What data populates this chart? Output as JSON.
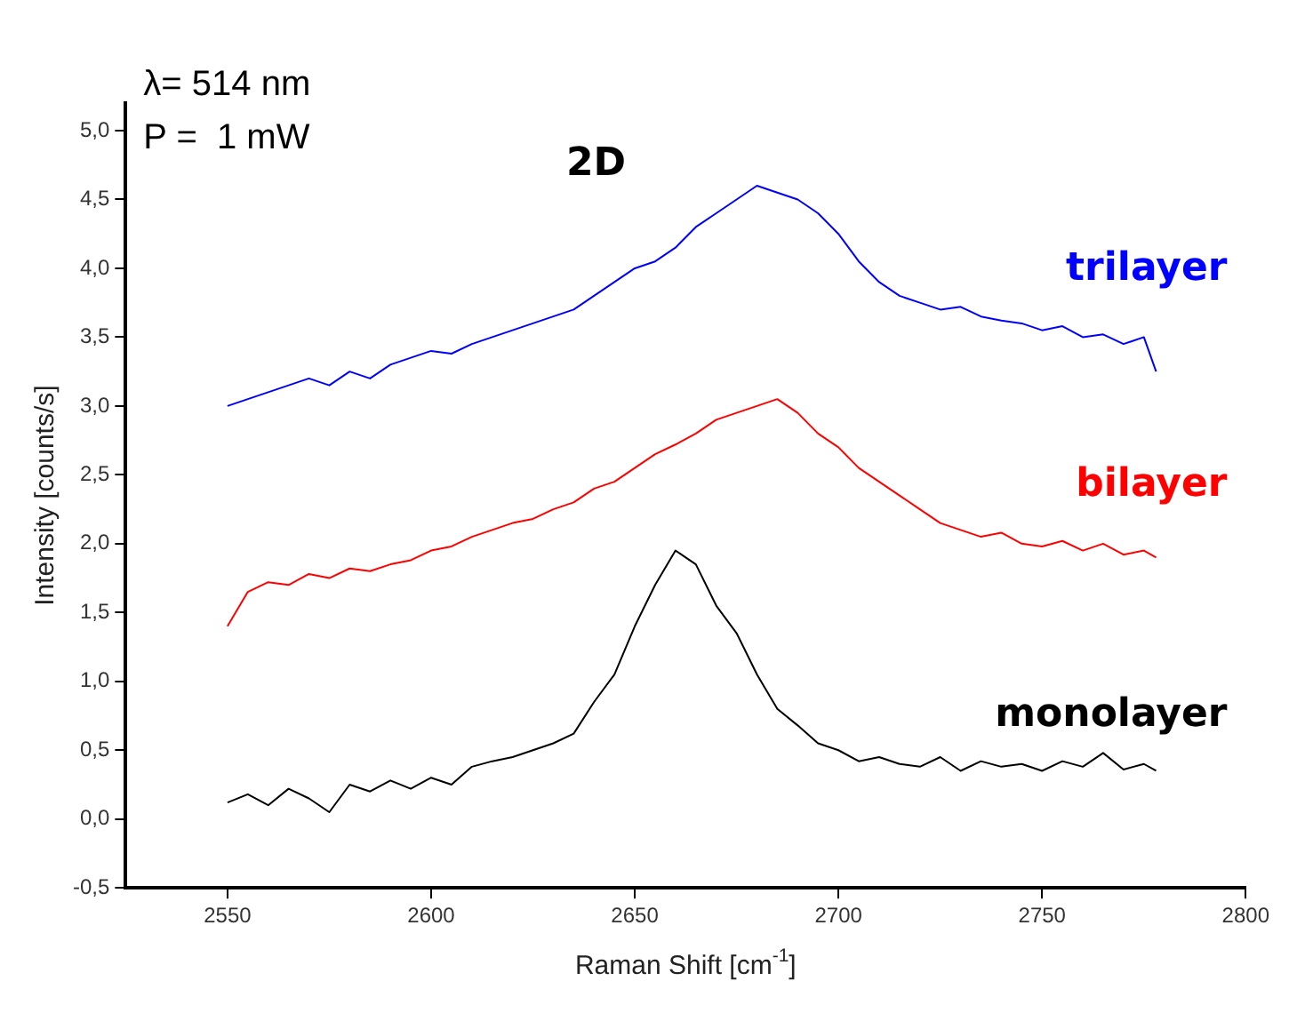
{
  "chart_data": {
    "type": "line",
    "xlabel": "Raman Shift [cm$^{-1}$]",
    "ylabel": "Intensity [counts/s]",
    "annotations": [
      "λ= 514 nm",
      "P =  1 mW",
      "2D"
    ],
    "x": [
      2550,
      2555,
      2560,
      2565,
      2570,
      2575,
      2580,
      2585,
      2590,
      2595,
      2600,
      2605,
      2610,
      2615,
      2620,
      2625,
      2630,
      2635,
      2640,
      2645,
      2650,
      2655,
      2660,
      2665,
      2670,
      2675,
      2680,
      2685,
      2690,
      2695,
      2700,
      2705,
      2710,
      2715,
      2720,
      2725,
      2730,
      2735,
      2740,
      2745,
      2750,
      2755,
      2760,
      2765,
      2770,
      2775,
      2778
    ],
    "series": [
      {
        "name": "trilayer",
        "color": "#0000ff",
        "values": [
          3.0,
          3.05,
          3.1,
          3.15,
          3.2,
          3.15,
          3.25,
          3.2,
          3.3,
          3.35,
          3.4,
          3.38,
          3.45,
          3.5,
          3.55,
          3.6,
          3.65,
          3.7,
          3.8,
          3.9,
          4.0,
          4.05,
          4.15,
          4.3,
          4.4,
          4.5,
          4.6,
          4.55,
          4.5,
          4.4,
          4.25,
          4.05,
          3.9,
          3.8,
          3.75,
          3.7,
          3.72,
          3.65,
          3.62,
          3.6,
          3.55,
          3.58,
          3.5,
          3.52,
          3.45,
          3.5,
          3.25
        ]
      },
      {
        "name": "bilayer",
        "color": "#ff0000",
        "values": [
          1.4,
          1.65,
          1.72,
          1.7,
          1.78,
          1.75,
          1.82,
          1.8,
          1.85,
          1.88,
          1.95,
          1.98,
          2.05,
          2.1,
          2.15,
          2.18,
          2.25,
          2.3,
          2.4,
          2.45,
          2.55,
          2.65,
          2.72,
          2.8,
          2.9,
          2.95,
          3.0,
          3.05,
          2.95,
          2.8,
          2.7,
          2.55,
          2.45,
          2.35,
          2.25,
          2.15,
          2.1,
          2.05,
          2.08,
          2.0,
          1.98,
          2.02,
          1.95,
          2.0,
          1.92,
          1.95,
          1.9
        ]
      },
      {
        "name": "monolayer",
        "color": "#000000",
        "values": [
          0.12,
          0.18,
          0.1,
          0.22,
          0.15,
          0.05,
          0.25,
          0.2,
          0.28,
          0.22,
          0.3,
          0.25,
          0.38,
          0.42,
          0.45,
          0.5,
          0.55,
          0.62,
          0.85,
          1.05,
          1.4,
          1.7,
          1.95,
          1.85,
          1.55,
          1.35,
          1.05,
          0.8,
          0.68,
          0.55,
          0.5,
          0.42,
          0.45,
          0.4,
          0.38,
          0.45,
          0.35,
          0.42,
          0.38,
          0.4,
          0.35,
          0.42,
          0.38,
          0.48,
          0.36,
          0.4,
          0.35
        ]
      }
    ],
    "xlim": [
      2525,
      2800
    ],
    "xticks": [
      2550,
      2600,
      2650,
      2700,
      2750,
      2800
    ],
    "ylim": [
      -0.5,
      5.2
    ],
    "yticks": [
      {
        "value": -0.5,
        "label": "-0,5"
      },
      {
        "value": 0,
        "label": "0,0"
      },
      {
        "value": 0.5,
        "label": "0,5"
      },
      {
        "value": 1,
        "label": "1,0"
      },
      {
        "value": 1.5,
        "label": "1,5"
      },
      {
        "value": 2,
        "label": "2,0"
      },
      {
        "value": 2.5,
        "label": "2,5"
      },
      {
        "value": 3,
        "label": "3,0"
      },
      {
        "value": 3.5,
        "label": "3,5"
      },
      {
        "value": 4,
        "label": "4,0"
      },
      {
        "value": 4.5,
        "label": "4,5"
      },
      {
        "value": 5,
        "label": "5,0"
      }
    ],
    "grid": false,
    "legend": false,
    "marker": "none",
    "line_style": "solid"
  }
}
